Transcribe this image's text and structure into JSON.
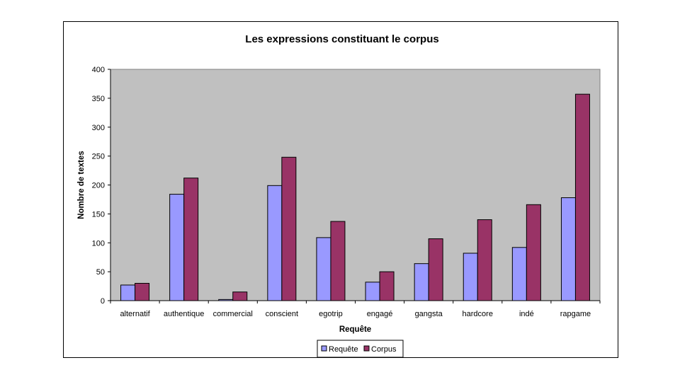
{
  "chart_data": {
    "type": "bar",
    "title": "Les expressions constituant le corpus",
    "xlabel": "Requête",
    "ylabel": "Nombre de textes",
    "ylim": [
      0,
      400
    ],
    "yticks": [
      0,
      50,
      100,
      150,
      200,
      250,
      300,
      350,
      400
    ],
    "grid": false,
    "legend_position": "bottom",
    "categories": [
      "alternatif",
      "authentique",
      "commercial",
      "conscient",
      "egotrip",
      "engagé",
      "gangsta",
      "hardcore",
      "indé",
      "rapgame"
    ],
    "series": [
      {
        "name": "Requête",
        "color": "#9999ff",
        "values": [
          27,
          184,
          2,
          199,
          109,
          32,
          64,
          82,
          92,
          178
        ]
      },
      {
        "name": "Corpus",
        "color": "#993366",
        "values": [
          30,
          212,
          15,
          248,
          137,
          50,
          107,
          140,
          166,
          357
        ]
      }
    ],
    "plot_background": "#c0c0c0"
  }
}
